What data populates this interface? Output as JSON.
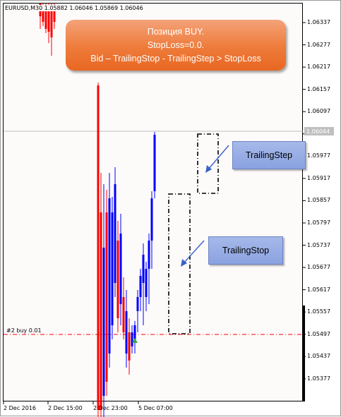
{
  "chart": {
    "symbol_info": "EURUSD,M30 1.05882 1.06046 1.05869 1.06046",
    "current_price": "1.06044",
    "order_label": "#2 buy 0.01"
  },
  "callout": {
    "line1": "Позиция BUY.",
    "line2": "StopLoss=0.0.",
    "line3": "Bid – TrailingStop - TrailingStep > StopLoss",
    "color": "#ee7b3a"
  },
  "labels": {
    "trailing_step": "TrailingStep",
    "trailing_stop": "TrailingStop"
  },
  "price_axis": [
    "1.06337",
    "1.06277",
    "1.06217",
    "1.06157",
    "1.06097",
    "1.06037",
    "1.05977",
    "1.05917",
    "1.05857",
    "1.05797",
    "1.05737",
    "1.05677",
    "1.05617",
    "1.05557",
    "1.05497",
    "1.05437",
    "1.05377"
  ],
  "time_axis": [
    "2 Dec 2016",
    "2 Dec 15:00",
    "2 Dec 23:00",
    "5 Dec 07:00"
  ],
  "colors": {
    "bull_candle": "#0000ff",
    "bear_candle": "#ff0000",
    "order_line": "#ff0000",
    "bid_line": "#c0c0c0",
    "arrow": "#3a62c8",
    "label_fill": "#8aa2e0"
  },
  "icons": {
    "trade-arrow": "green-blue-up-arrow-icon"
  }
}
